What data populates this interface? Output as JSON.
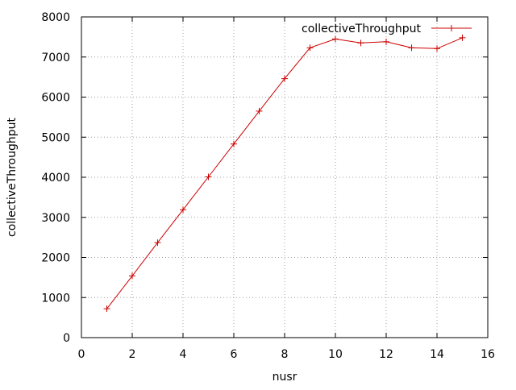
{
  "chart_data": {
    "type": "line",
    "title": "",
    "xlabel": "nusr",
    "ylabel": "collectiveThroughput",
    "xlim": [
      0,
      16
    ],
    "ylim": [
      0,
      8000
    ],
    "xticks": [
      "0",
      "2",
      "4",
      "6",
      "8",
      "10",
      "12",
      "14",
      "16"
    ],
    "yticks": [
      "0",
      "1000",
      "2000",
      "3000",
      "4000",
      "5000",
      "6000",
      "7000",
      "8000"
    ],
    "grid": true,
    "legend_position": "top-right",
    "series": [
      {
        "name": "collectiveThroughput",
        "color": "#cc0000",
        "marker": "plus",
        "x": [
          1,
          2,
          3,
          4,
          5,
          6,
          7,
          8,
          9,
          10,
          11,
          12,
          13,
          14,
          15
        ],
        "y": [
          720,
          1540,
          2370,
          3190,
          4010,
          4830,
          5650,
          6460,
          7230,
          7450,
          7350,
          7380,
          7230,
          7210,
          7480
        ]
      }
    ]
  }
}
